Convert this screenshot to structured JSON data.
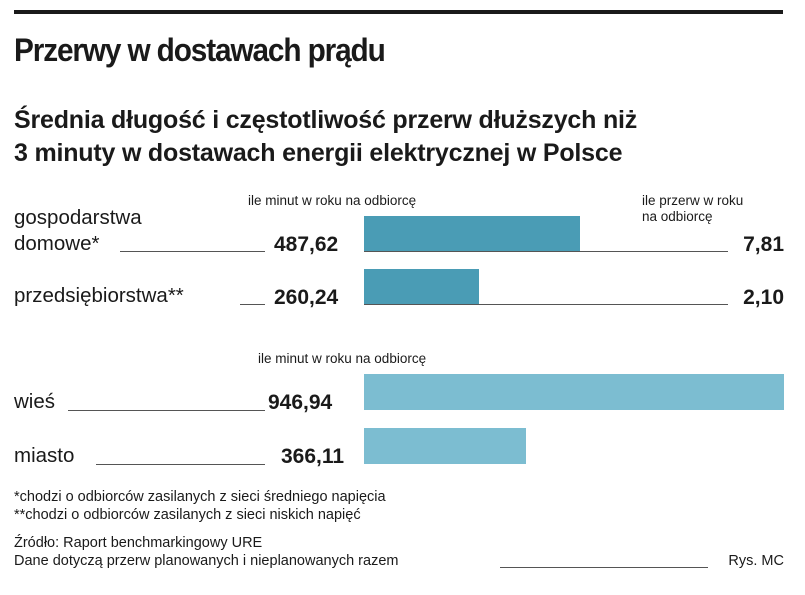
{
  "title": "Przerwy w dostawach prądu",
  "subtitle_line1": "Średnia długość i częstotliwość przerw dłuższych niż",
  "subtitle_line2": "3 minuty w dostawach energii elektrycznej w Polsce",
  "colors": {
    "bar_dark": "#4a9cb5",
    "bar_light": "#7cbdd1"
  },
  "chart_data": [
    {
      "type": "bar",
      "orientation": "horizontal",
      "categories": [
        "gospodarstwa domowe*",
        "przedsiębiorstwa**"
      ],
      "category_lines": [
        [
          "gospodarstwa",
          "domowe*"
        ],
        [
          "przedsiębiorstwa**"
        ]
      ],
      "series": [
        {
          "name": "ile minut w roku na odbiorcę",
          "values": [
            487.62,
            260.24
          ],
          "labels": [
            "487,62",
            "260,24"
          ]
        },
        {
          "name": "ile przerw w roku na odbiorcę",
          "values": [
            7.81,
            2.1
          ],
          "labels": [
            "7,81",
            "2,10"
          ]
        }
      ],
      "header_minutes": "ile minut w roku na odbiorcę",
      "header_count_line1": "ile przerw w roku",
      "header_count_line2": "na odbiorcę",
      "xlim": [
        0,
        946.94
      ]
    },
    {
      "type": "bar",
      "orientation": "horizontal",
      "categories": [
        "wieś",
        "miasto"
      ],
      "series": [
        {
          "name": "ile minut w roku na odbiorcę",
          "values": [
            946.94,
            366.11
          ],
          "labels": [
            "946,94",
            "366,11"
          ]
        }
      ],
      "header_minutes": "ile minut w roku na odbiorcę",
      "xlim": [
        0,
        946.94
      ]
    }
  ],
  "footnotes": {
    "note1": "*chodzi o odbiorców zasilanych z sieci średniego napięcia",
    "note2": "**chodzi o odbiorców zasilanych z sieci niskich napięć",
    "source": "Źródło: Raport benchmarkingowy URE",
    "remark": "Dane dotyczą przerw planowanych i nieplanowanych razem",
    "credit": "Rys. MC"
  }
}
